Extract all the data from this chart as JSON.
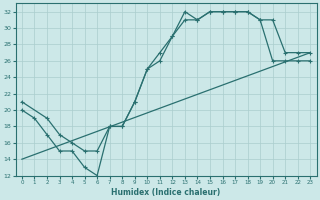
{
  "xlabel": "Humidex (Indice chaleur)",
  "bg_color": "#cce8e8",
  "line_color": "#2a7070",
  "grid_color": "#aacece",
  "xlim": [
    -0.5,
    23.5
  ],
  "ylim": [
    12,
    33
  ],
  "xticks": [
    0,
    1,
    2,
    3,
    4,
    5,
    6,
    7,
    8,
    9,
    10,
    11,
    12,
    13,
    14,
    15,
    16,
    17,
    18,
    19,
    20,
    21,
    22,
    23
  ],
  "yticks": [
    12,
    14,
    16,
    18,
    20,
    22,
    24,
    26,
    28,
    30,
    32
  ],
  "line1_x": [
    0,
    1,
    2,
    3,
    4,
    5,
    6,
    7,
    8,
    9,
    10,
    11,
    12,
    13,
    14,
    15,
    16,
    17,
    18,
    19,
    20,
    21,
    22,
    23
  ],
  "line1_y": [
    20,
    19,
    17,
    15,
    15,
    13,
    12,
    18,
    18,
    21,
    25,
    26,
    29,
    31,
    31,
    32,
    32,
    32,
    32,
    31,
    26,
    26,
    26,
    26
  ],
  "line2_x": [
    0,
    2,
    3,
    4,
    5,
    6,
    7,
    8,
    9,
    10,
    11,
    12,
    13,
    14,
    15,
    16,
    17,
    18,
    19,
    20,
    21,
    22,
    23
  ],
  "line2_y": [
    21,
    19,
    17,
    16,
    15,
    15,
    18,
    18,
    21,
    25,
    27,
    29,
    32,
    31,
    32,
    32,
    32,
    32,
    31,
    31,
    27,
    27,
    27
  ],
  "line3_x": [
    0,
    23
  ],
  "line3_y": [
    14,
    27
  ]
}
